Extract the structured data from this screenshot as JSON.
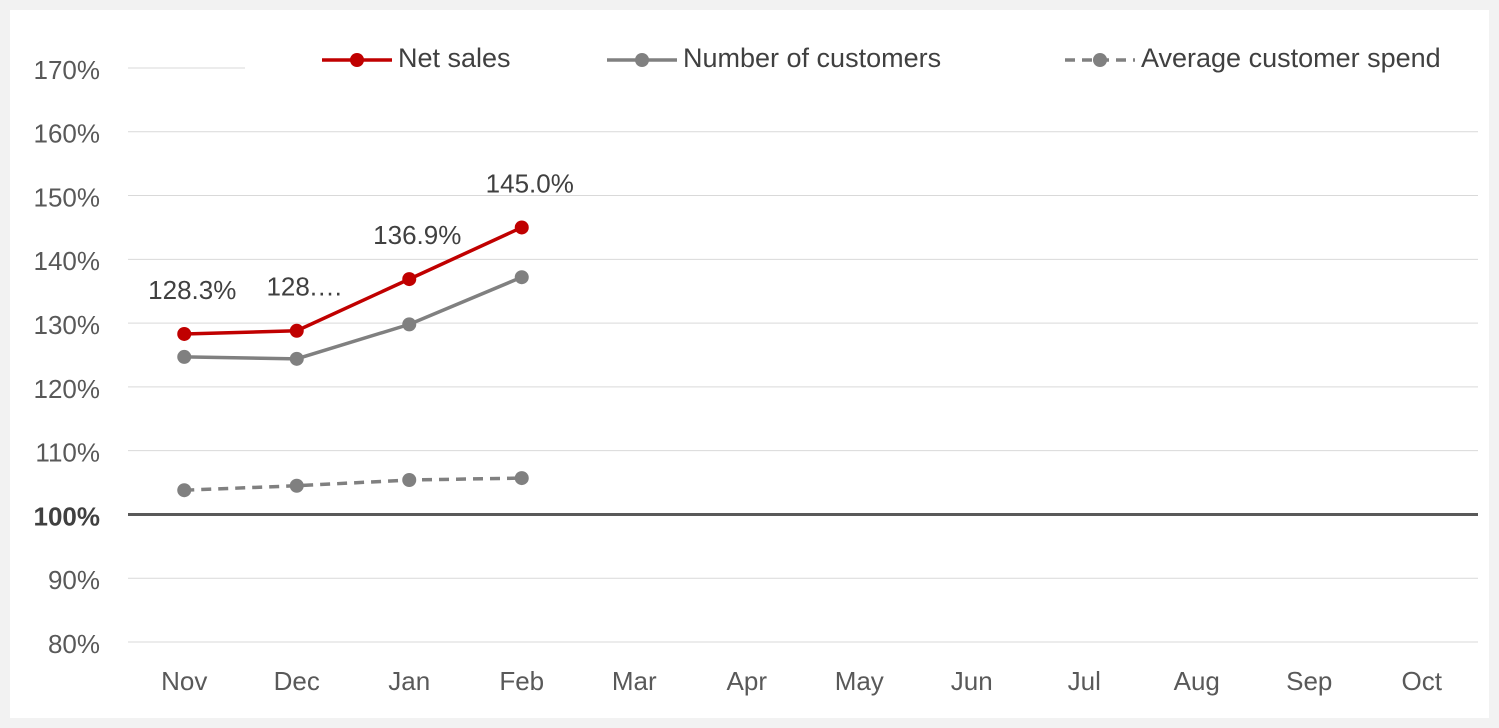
{
  "chart_data": {
    "type": "line",
    "categories": [
      "Nov",
      "Dec",
      "Jan",
      "Feb",
      "Mar",
      "Apr",
      "May",
      "Jun",
      "Jul",
      "Aug",
      "Sep",
      "Oct"
    ],
    "series": [
      {
        "name": "Net sales",
        "color": "#c00000",
        "dashed": false,
        "values": [
          128.3,
          128.8,
          136.9,
          145.0,
          null,
          null,
          null,
          null,
          null,
          null,
          null,
          null
        ],
        "value_labels": [
          "128.3%",
          "128.…",
          "136.9%",
          "145.0%",
          null,
          null,
          null,
          null,
          null,
          null,
          null,
          null
        ]
      },
      {
        "name": "Number of customers",
        "color": "#808080",
        "dashed": false,
        "values": [
          124.7,
          124.4,
          129.8,
          137.2,
          null,
          null,
          null,
          null,
          null,
          null,
          null,
          null
        ]
      },
      {
        "name": "Average customer spend",
        "color": "#808080",
        "dashed": true,
        "values": [
          103.8,
          104.5,
          105.4,
          105.7,
          null,
          null,
          null,
          null,
          null,
          null,
          null,
          null
        ]
      }
    ],
    "ylim": [
      80,
      170
    ],
    "yticks": [
      {
        "value": 80,
        "label": "80%"
      },
      {
        "value": 90,
        "label": "90%"
      },
      {
        "value": 100,
        "label": "100%"
      },
      {
        "value": 110,
        "label": "110%"
      },
      {
        "value": 120,
        "label": "120%"
      },
      {
        "value": 130,
        "label": "130%"
      },
      {
        "value": 140,
        "label": "140%"
      },
      {
        "value": 150,
        "label": "150%"
      },
      {
        "value": 160,
        "label": "160%"
      },
      {
        "value": 170,
        "label": "170%"
      }
    ],
    "baseline": 100,
    "grid": true,
    "legend": "top"
  }
}
